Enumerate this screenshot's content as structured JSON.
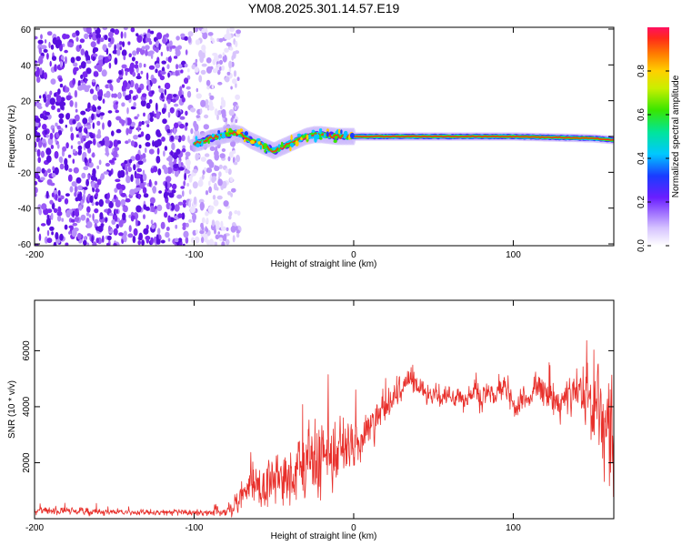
{
  "title": "YM08.2025.301.14.57.E19",
  "chart_data": [
    {
      "type": "heatmap",
      "xlabel": "Height of straight line (km)",
      "ylabel": "Frequency (Hz)",
      "xlim": [
        -200,
        163
      ],
      "ylim": [
        -61,
        61
      ],
      "x_ticks": [
        -200,
        -100,
        0,
        100
      ],
      "y_ticks": [
        -60,
        -40,
        -20,
        0,
        20,
        40,
        60
      ],
      "colorbar": {
        "label": "Normalized spectral amplitude",
        "range": [
          0,
          1
        ],
        "ticks": [
          0.0,
          0.2,
          0.4,
          0.6,
          0.8
        ]
      },
      "noise_region_x": [
        -200,
        -80
      ],
      "signal_track": [
        {
          "x": -100,
          "f": -4
        },
        {
          "x": -95,
          "f": -3
        },
        {
          "x": -90,
          "f": -1
        },
        {
          "x": -85,
          "f": 0
        },
        {
          "x": -80,
          "f": 1
        },
        {
          "x": -75,
          "f": 2
        },
        {
          "x": -70,
          "f": 1
        },
        {
          "x": -65,
          "f": -2
        },
        {
          "x": -60,
          "f": -4
        },
        {
          "x": -55,
          "f": -6
        },
        {
          "x": -50,
          "f": -8
        },
        {
          "x": -45,
          "f": -6
        },
        {
          "x": -40,
          "f": -4
        },
        {
          "x": -35,
          "f": -2
        },
        {
          "x": -30,
          "f": 0
        },
        {
          "x": -25,
          "f": 1
        },
        {
          "x": -20,
          "f": 1
        },
        {
          "x": -10,
          "f": 0
        },
        {
          "x": 0,
          "f": 0
        },
        {
          "x": 50,
          "f": 0
        },
        {
          "x": 100,
          "f": 0
        },
        {
          "x": 150,
          "f": -1
        },
        {
          "x": 163,
          "f": -2
        }
      ]
    },
    {
      "type": "line",
      "xlabel": "Height of straight line (km)",
      "ylabel": "SNR (10 * v/v)",
      "xlim": [
        -200,
        163
      ],
      "ylim": [
        0,
        7800
      ],
      "x_ticks": [
        -200,
        -100,
        0,
        100
      ],
      "y_ticks": [
        2000,
        4000,
        6000
      ],
      "series": [
        {
          "name": "SNR",
          "color": "#e8302b",
          "x": [
            -200,
            -180,
            -160,
            -140,
            -120,
            -100,
            -90,
            -80,
            -75,
            -70,
            -65,
            -60,
            -55,
            -50,
            -45,
            -40,
            -35,
            -30,
            -25,
            -20,
            -15,
            -10,
            -5,
            0,
            5,
            10,
            15,
            20,
            25,
            30,
            35,
            40,
            45,
            50,
            55,
            60,
            65,
            70,
            75,
            80,
            85,
            90,
            95,
            100,
            105,
            110,
            115,
            120,
            125,
            130,
            135,
            140,
            145,
            150,
            155,
            160,
            163
          ],
          "base": [
            300,
            280,
            250,
            230,
            220,
            230,
            250,
            300,
            500,
            700,
            900,
            1100,
            1300,
            1200,
            1400,
            1600,
            1700,
            1900,
            2000,
            2100,
            2200,
            2300,
            2500,
            2800,
            3100,
            3400,
            3700,
            4000,
            4300,
            4700,
            5000,
            4700,
            4500,
            4400,
            4300,
            4500,
            4400,
            4200,
            4500,
            4300,
            4500,
            4400,
            4900,
            4000,
            4100,
            4400,
            4800,
            4300,
            4200,
            4000,
            4400,
            4700,
            4500,
            4000,
            3600,
            3000,
            2500
          ],
          "amp": [
            200,
            200,
            180,
            160,
            160,
            180,
            220,
            350,
            500,
            700,
            900,
            1100,
            1300,
            1400,
            1500,
            1700,
            1800,
            1900,
            2000,
            2000,
            2000,
            2000,
            1800,
            1500,
            1200,
            1000,
            900,
            800,
            700,
            600,
            600,
            600,
            600,
            600,
            600,
            600,
            600,
            600,
            600,
            600,
            600,
            600,
            600,
            700,
            700,
            700,
            700,
            800,
            800,
            900,
            1000,
            1200,
            1500,
            1800,
            2200,
            2600,
            2800
          ]
        }
      ]
    }
  ]
}
